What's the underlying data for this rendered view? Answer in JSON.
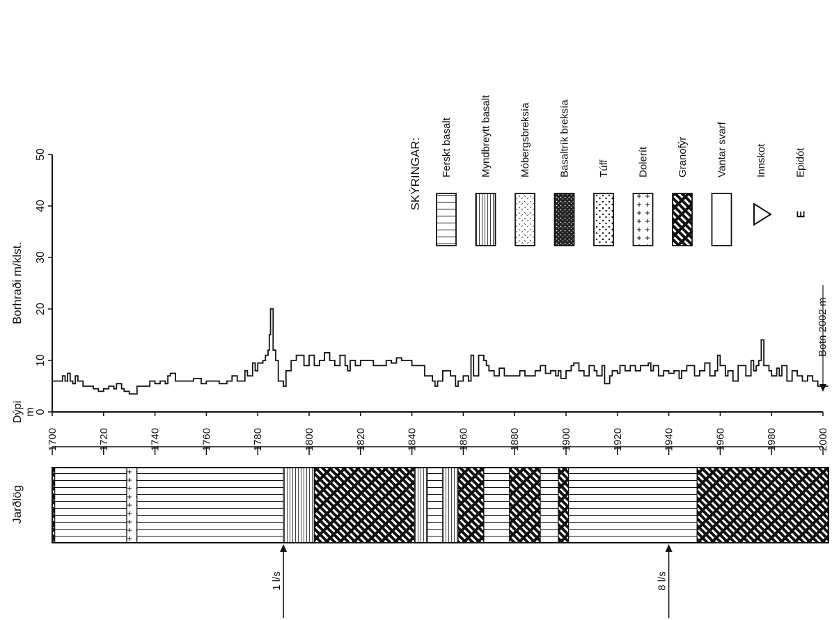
{
  "chart_data": {
    "type": "line",
    "ylabel": "Borhraði m/klst.",
    "xlabel_line1": "Dýpi",
    "xlabel_line2": "m",
    "xlim": [
      1700,
      2002
    ],
    "ylim": [
      0,
      50
    ],
    "x_ticks": [
      1700,
      1720,
      1740,
      1760,
      1780,
      1800,
      1820,
      1840,
      1860,
      1880,
      1900,
      1920,
      1940,
      1960,
      1980,
      2000
    ],
    "y_ticks": [
      0,
      10,
      20,
      30,
      40,
      50
    ],
    "series": [
      {
        "x": [
          1700,
          1704,
          1705,
          1706,
          1707,
          1708,
          1709,
          1710,
          1712,
          1714,
          1716,
          1718,
          1720,
          1722,
          1724,
          1725,
          1727,
          1728,
          1730,
          1733,
          1738,
          1740,
          1742,
          1744,
          1745,
          1746,
          1748,
          1750,
          1755,
          1758,
          1760,
          1765,
          1768,
          1770,
          1772,
          1775,
          1776,
          1778,
          1779,
          1780,
          1782,
          1783,
          1784,
          1784.5,
          1785,
          1786,
          1787,
          1788,
          1790,
          1791,
          1793,
          1795,
          1798,
          1800,
          1802,
          1804,
          1806,
          1808,
          1810,
          1812,
          1814,
          1815,
          1816,
          1818,
          1820,
          1825,
          1830,
          1832,
          1834,
          1836,
          1840,
          1842,
          1845,
          1848,
          1849,
          1850,
          1852,
          1855,
          1857,
          1858,
          1860,
          1862,
          1863,
          1864,
          1866,
          1868,
          1869,
          1870,
          1872,
          1874,
          1876,
          1880,
          1882,
          1884,
          1888,
          1890,
          1892,
          1894,
          1896,
          1897,
          1898,
          1900,
          1902,
          1903,
          1905,
          1907,
          1909,
          1911,
          1912,
          1914,
          1915,
          1917,
          1918,
          1920,
          1921,
          1923,
          1925,
          1927,
          1929,
          1932,
          1933,
          1934,
          1936,
          1938,
          1940,
          1942,
          1944,
          1945,
          1947,
          1950,
          1952,
          1954,
          1956,
          1958,
          1959,
          1960,
          1962,
          1963,
          1965,
          1967,
          1970,
          1972,
          1973,
          1974,
          1975,
          1976,
          1977,
          1979,
          1980,
          1982,
          1983,
          1984,
          1986,
          1988,
          1990,
          1992,
          1994,
          1996,
          1998,
          2002
        ],
        "values": [
          6,
          7,
          6,
          7.5,
          6,
          5.5,
          7,
          6,
          5,
          5,
          4.5,
          4,
          4.5,
          5,
          4.5,
          5.5,
          4.5,
          4,
          3.5,
          5,
          6,
          5.5,
          6,
          5.5,
          7,
          7.5,
          6,
          6,
          6.5,
          5.5,
          6,
          5.5,
          6,
          7,
          6,
          8,
          7,
          9.5,
          8,
          9.5,
          10,
          11,
          12,
          15,
          20,
          12,
          10,
          6,
          5,
          8,
          10,
          11,
          9,
          11,
          9,
          10,
          11.5,
          10,
          9,
          11,
          9,
          8,
          10,
          9,
          10,
          9,
          10,
          9.5,
          10.5,
          10,
          9,
          9,
          7,
          6,
          5,
          6,
          8,
          7,
          5,
          6,
          7,
          6,
          11,
          7,
          11,
          10,
          9,
          8,
          7,
          8.5,
          7,
          7,
          8,
          7,
          8,
          9,
          7.5,
          8,
          7,
          8,
          6.5,
          8,
          9,
          9.5,
          8,
          7,
          9,
          8,
          7,
          9,
          5.5,
          7,
          8,
          7.5,
          9,
          8,
          9,
          8,
          9,
          9.5,
          8,
          9,
          7,
          8,
          7.5,
          8,
          6.5,
          8,
          9,
          7,
          8,
          9.5,
          7,
          8,
          11,
          9,
          7,
          8,
          6,
          9,
          7,
          10,
          8,
          9,
          10,
          14,
          9,
          8,
          7,
          8.5,
          7,
          9,
          6,
          8,
          7,
          6,
          7,
          6,
          5,
          5
        ]
      }
    ]
  },
  "logs": {
    "title": "Jarðlög",
    "intervals": [
      {
        "from": 1700,
        "to": 1701,
        "type": "granofyr"
      },
      {
        "from": 1701,
        "to": 1729,
        "type": "ferskt"
      },
      {
        "from": 1729,
        "to": 1733,
        "type": "dolerit"
      },
      {
        "from": 1733,
        "to": 1790,
        "type": "ferskt"
      },
      {
        "from": 1790,
        "to": 1802,
        "type": "myndbreytt"
      },
      {
        "from": 1802,
        "to": 1841,
        "type": "granofyr"
      },
      {
        "from": 1841,
        "to": 1846,
        "type": "myndbreytt"
      },
      {
        "from": 1846,
        "to": 1852,
        "type": "ferskt"
      },
      {
        "from": 1852,
        "to": 1858,
        "type": "myndbreytt"
      },
      {
        "from": 1858,
        "to": 1868,
        "type": "granofyr"
      },
      {
        "from": 1868,
        "to": 1878,
        "type": "ferskt"
      },
      {
        "from": 1878,
        "to": 1890,
        "type": "granofyr"
      },
      {
        "from": 1890,
        "to": 1897,
        "type": "ferskt"
      },
      {
        "from": 1897,
        "to": 1901,
        "type": "granofyr"
      },
      {
        "from": 1901,
        "to": 1951,
        "type": "ferskt"
      },
      {
        "from": 1951,
        "to": 2002,
        "type": "granofyr"
      }
    ],
    "inflow_markers": [
      {
        "depth": 1790,
        "label": "1 l/s"
      },
      {
        "depth": 1940,
        "label": "8 l/s"
      }
    ]
  },
  "botn_label": "Botn 2002 m",
  "legend": {
    "title": "SKÝRINGAR:",
    "items": [
      {
        "swatch": "ferskt",
        "label": "Ferskt basalt"
      },
      {
        "swatch": "myndbreytt",
        "label": "Myndbreytt basalt"
      },
      {
        "swatch": "mobergs",
        "label": "Móbergsbreksía"
      },
      {
        "swatch": "basaltrik",
        "label": "Basaltrík breksía"
      },
      {
        "swatch": "tuff",
        "label": "Túff"
      },
      {
        "swatch": "dolerit",
        "label": "Dolerít"
      },
      {
        "swatch": "granofyr",
        "label": "Granofýr"
      },
      {
        "swatch": "vantar",
        "label": "Vantar svarf"
      },
      {
        "swatch": "innskot",
        "label": "Innskot"
      },
      {
        "swatch": "epidot",
        "label": "Epidót",
        "symbol": "E"
      }
    ]
  }
}
